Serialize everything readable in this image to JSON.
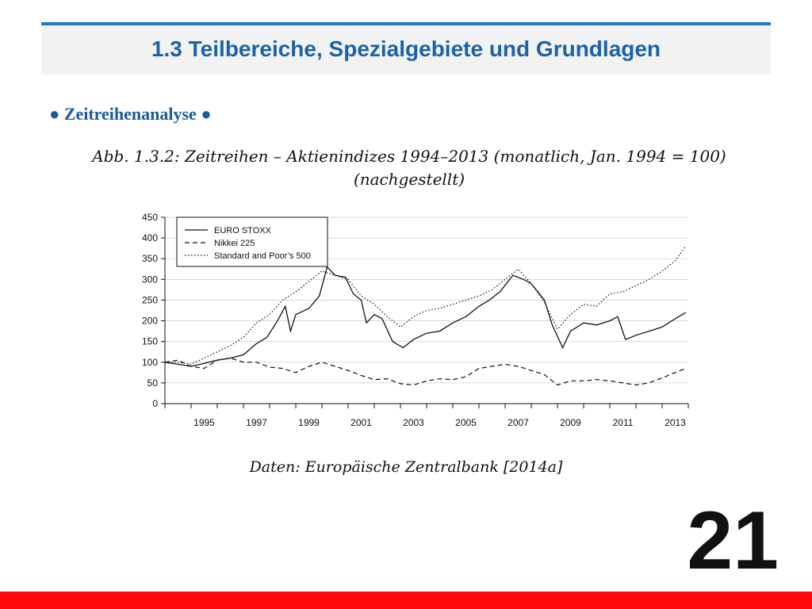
{
  "slide": {
    "title": "1.3 Teilbereiche, Spezialgebiete und Grundlagen",
    "bullet": "● Zeitreihenanalyse ●",
    "caption_line1": "Abb. 1.3.2: Zeitreihen – Aktienindizes 1994–2013 (monatlich, Jan. 1994 = 100)",
    "caption_line2": "(nachgestellt)",
    "source": "Daten: Europäische Zentralbank [2014a]",
    "page_number": "21",
    "colors": {
      "title": "#1a63a8",
      "accent_bar": "#1f78c1",
      "bottom_bar": "#ff0a0a",
      "line": "#111111"
    }
  },
  "chart_data": {
    "type": "line",
    "xlim": [
      1994,
      2014
    ],
    "ylim": [
      0,
      450
    ],
    "y_ticks": [
      0,
      50,
      100,
      150,
      200,
      250,
      300,
      350,
      400,
      450
    ],
    "x_tick_labels": [
      "1995",
      "1997",
      "1999",
      "2001",
      "2003",
      "2005",
      "2007",
      "2009",
      "2011",
      "2013"
    ],
    "legend_placement": "top-left",
    "grid": "horizontal",
    "series": [
      {
        "name": "EURO STOXX",
        "style": "solid",
        "points": [
          [
            1994.0,
            100
          ],
          [
            1994.5,
            95
          ],
          [
            1995.0,
            90
          ],
          [
            1995.5,
            97
          ],
          [
            1996.0,
            105
          ],
          [
            1996.5,
            110
          ],
          [
            1997.0,
            118
          ],
          [
            1997.5,
            145
          ],
          [
            1997.9,
            160
          ],
          [
            1998.3,
            200
          ],
          [
            1998.6,
            235
          ],
          [
            1998.8,
            175
          ],
          [
            1999.0,
            215
          ],
          [
            1999.5,
            230
          ],
          [
            1999.9,
            260
          ],
          [
            2000.2,
            330
          ],
          [
            2000.5,
            310
          ],
          [
            2000.9,
            305
          ],
          [
            2001.2,
            265
          ],
          [
            2001.5,
            250
          ],
          [
            2001.7,
            195
          ],
          [
            2002.0,
            215
          ],
          [
            2002.3,
            205
          ],
          [
            2002.7,
            150
          ],
          [
            2003.1,
            135
          ],
          [
            2003.5,
            155
          ],
          [
            2004.0,
            170
          ],
          [
            2004.5,
            175
          ],
          [
            2005.0,
            195
          ],
          [
            2005.5,
            210
          ],
          [
            2006.0,
            235
          ],
          [
            2006.4,
            250
          ],
          [
            2006.8,
            270
          ],
          [
            2007.3,
            310
          ],
          [
            2007.7,
            300
          ],
          [
            2008.0,
            290
          ],
          [
            2008.5,
            250
          ],
          [
            2008.8,
            190
          ],
          [
            2009.2,
            135
          ],
          [
            2009.5,
            175
          ],
          [
            2010.0,
            195
          ],
          [
            2010.5,
            190
          ],
          [
            2011.0,
            200
          ],
          [
            2011.3,
            210
          ],
          [
            2011.6,
            155
          ],
          [
            2012.0,
            165
          ],
          [
            2012.5,
            175
          ],
          [
            2013.0,
            185
          ],
          [
            2013.5,
            205
          ],
          [
            2013.9,
            220
          ]
        ]
      },
      {
        "name": "Nikkei 225",
        "style": "dashed",
        "points": [
          [
            1994.0,
            100
          ],
          [
            1994.5,
            105
          ],
          [
            1995.0,
            90
          ],
          [
            1995.5,
            85
          ],
          [
            1996.0,
            105
          ],
          [
            1996.5,
            110
          ],
          [
            1997.0,
            100
          ],
          [
            1997.5,
            100
          ],
          [
            1998.0,
            88
          ],
          [
            1998.5,
            85
          ],
          [
            1999.0,
            75
          ],
          [
            1999.5,
            90
          ],
          [
            2000.0,
            100
          ],
          [
            2000.5,
            90
          ],
          [
            2001.0,
            80
          ],
          [
            2001.5,
            68
          ],
          [
            2002.0,
            58
          ],
          [
            2002.5,
            60
          ],
          [
            2003.0,
            48
          ],
          [
            2003.5,
            45
          ],
          [
            2004.0,
            55
          ],
          [
            2004.5,
            60
          ],
          [
            2005.0,
            58
          ],
          [
            2005.5,
            65
          ],
          [
            2006.0,
            85
          ],
          [
            2006.5,
            90
          ],
          [
            2007.0,
            95
          ],
          [
            2007.5,
            90
          ],
          [
            2008.0,
            80
          ],
          [
            2008.5,
            70
          ],
          [
            2009.0,
            45
          ],
          [
            2009.5,
            55
          ],
          [
            2010.0,
            55
          ],
          [
            2010.5,
            58
          ],
          [
            2011.0,
            55
          ],
          [
            2011.5,
            50
          ],
          [
            2012.0,
            45
          ],
          [
            2012.5,
            50
          ],
          [
            2013.0,
            62
          ],
          [
            2013.5,
            75
          ],
          [
            2013.9,
            85
          ]
        ]
      },
      {
        "name": "Standard and Poor’s 500",
        "style": "dotted",
        "points": [
          [
            1994.0,
            100
          ],
          [
            1994.5,
            100
          ],
          [
            1995.0,
            95
          ],
          [
            1995.5,
            110
          ],
          [
            1996.0,
            125
          ],
          [
            1996.5,
            140
          ],
          [
            1997.0,
            160
          ],
          [
            1997.5,
            195
          ],
          [
            1998.0,
            215
          ],
          [
            1998.5,
            250
          ],
          [
            1999.0,
            270
          ],
          [
            1999.5,
            295
          ],
          [
            2000.0,
            320
          ],
          [
            2000.5,
            310
          ],
          [
            2001.0,
            300
          ],
          [
            2001.5,
            260
          ],
          [
            2002.0,
            240
          ],
          [
            2002.5,
            210
          ],
          [
            2003.0,
            185
          ],
          [
            2003.5,
            210
          ],
          [
            2004.0,
            225
          ],
          [
            2004.5,
            230
          ],
          [
            2005.0,
            240
          ],
          [
            2005.5,
            250
          ],
          [
            2006.0,
            260
          ],
          [
            2006.5,
            275
          ],
          [
            2007.0,
            300
          ],
          [
            2007.5,
            325
          ],
          [
            2008.0,
            290
          ],
          [
            2008.5,
            245
          ],
          [
            2009.0,
            180
          ],
          [
            2009.5,
            215
          ],
          [
            2010.0,
            240
          ],
          [
            2010.5,
            235
          ],
          [
            2011.0,
            265
          ],
          [
            2011.5,
            270
          ],
          [
            2012.0,
            285
          ],
          [
            2012.5,
            300
          ],
          [
            2013.0,
            320
          ],
          [
            2013.5,
            345
          ],
          [
            2013.9,
            380
          ]
        ]
      }
    ]
  }
}
